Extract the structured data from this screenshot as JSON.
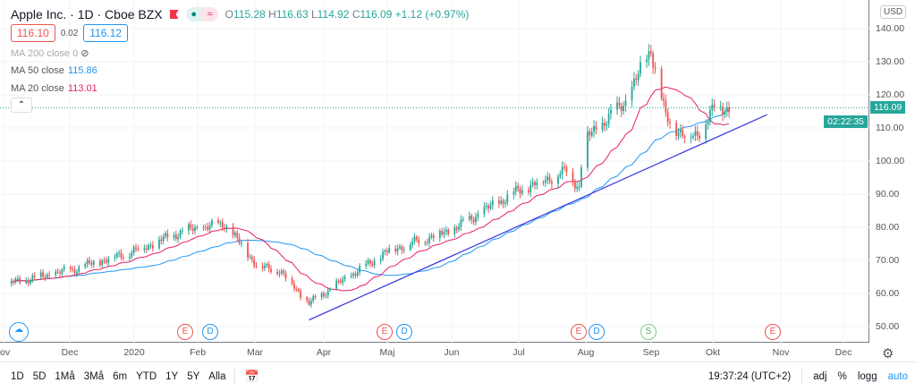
{
  "header": {
    "title": "Apple Inc. · 1D · Cboe BZX",
    "open_label": "O",
    "open": "115.28",
    "high_label": "H",
    "high": "116.63",
    "low_label": "L",
    "low": "114.92",
    "close_label": "C",
    "close": "116.09",
    "change": "+1.12 (+0.97%)",
    "bid": "116.10",
    "spread": "0.02",
    "ask": "116.12"
  },
  "indicators": [
    {
      "label": "MA 200 close",
      "value": "0"
    },
    {
      "label": "MA 50 close",
      "value": "115.86"
    },
    {
      "label": "MA 20 close",
      "value": "113.01"
    }
  ],
  "price_axis": {
    "currency": "USD",
    "ticks": [
      "140.00",
      "130.00",
      "120.00",
      "110.00",
      "100.00",
      "90.00",
      "80.00",
      "70.00",
      "60.00",
      "50.00"
    ],
    "last_price": "116.09",
    "countdown": "02:22:35"
  },
  "time_axis": [
    "ov",
    "Dec",
    "2020",
    "Feb",
    "Mar",
    "Apr",
    "Maj",
    "Jun",
    "Jul",
    "Aug",
    "Sep",
    "Okt",
    "Nov",
    "Dec"
  ],
  "events": [
    "E",
    "D",
    "E",
    "D",
    "E",
    "D",
    "S",
    "E"
  ],
  "bottom": {
    "ranges": [
      "1D",
      "5D",
      "1Må",
      "3Må",
      "6m",
      "YTD",
      "1Y",
      "5Y",
      "Alla"
    ],
    "time": "19:37:24 (UTC+2)",
    "adj": "adj",
    "pct": "%",
    "log": "logg",
    "auto": "auto"
  },
  "colors": {
    "up": "#26a69a",
    "down": "#ef5350",
    "ma50": "#2196f3",
    "ma20": "#e91e63",
    "trend": "#3f3fe0"
  },
  "chart_data": {
    "type": "candlestick",
    "symbol": "AAPL",
    "ylim": [
      45,
      143
    ],
    "keypoints_day_close": [
      [
        0,
        63
      ],
      [
        30,
        67
      ],
      [
        61,
        73
      ],
      [
        84,
        79
      ],
      [
        103,
        81
      ],
      [
        119,
        68
      ],
      [
        129,
        67
      ],
      [
        143,
        57
      ],
      [
        152,
        61
      ],
      [
        181,
        73
      ],
      [
        210,
        79
      ],
      [
        242,
        91
      ],
      [
        265,
        97
      ],
      [
        271,
        92
      ],
      [
        273,
        106
      ],
      [
        293,
        118
      ],
      [
        305,
        134
      ],
      [
        312,
        113
      ],
      [
        322,
        107
      ],
      [
        327,
        108
      ],
      [
        335,
        116
      ],
      [
        343,
        116
      ]
    ],
    "trendline": [
      [
        143,
        52
      ],
      [
        360,
        114
      ]
    ]
  }
}
